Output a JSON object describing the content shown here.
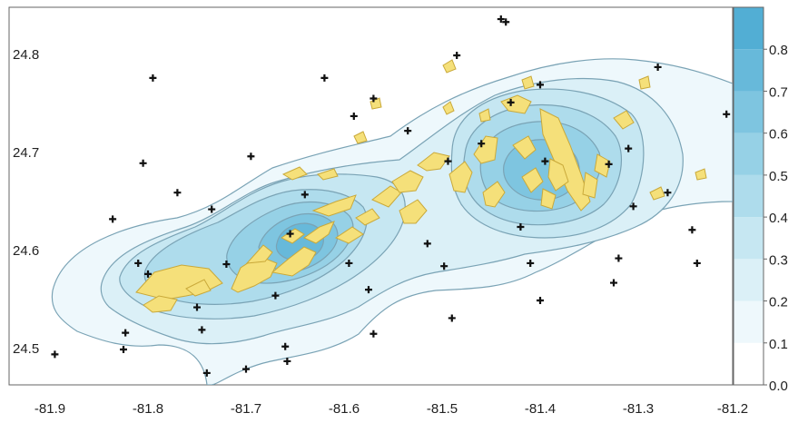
{
  "map": {
    "x_ticks": [
      "-81.9",
      "-81.8",
      "-81.7",
      "-81.6",
      "-81.5",
      "-81.4",
      "-81.3",
      "-81.2"
    ],
    "y_ticks": [
      "24.5",
      "24.6",
      "24.7",
      "24.8"
    ],
    "xlim": [
      -81.9,
      -81.2
    ],
    "ylim": [
      24.45,
      24.85
    ],
    "colors": {
      "land": "#f5e07a",
      "land_edge": "#c9a93a",
      "contour_line": "#7aa3b5",
      "frame": "#666666",
      "point": "#111111"
    }
  },
  "colorbar": {
    "ticks": [
      "0.0",
      "0.1",
      "0.2",
      "0.3",
      "0.4",
      "0.5",
      "0.6",
      "0.7",
      "0.8"
    ],
    "range": [
      0.0,
      0.9
    ],
    "colors": [
      "#ffffff",
      "#eef8fc",
      "#dbf0f7",
      "#c6e7f2",
      "#aedcec",
      "#96d1e6",
      "#7ec5e0",
      "#67b9da",
      "#52aed4"
    ]
  },
  "points": [
    [
      -81.895,
      24.495
    ],
    [
      -81.84,
      24.453
    ],
    [
      -81.82,
      24.458
    ],
    [
      -81.825,
      24.5
    ],
    [
      -81.823,
      24.517
    ],
    [
      -81.836,
      24.633
    ],
    [
      -81.81,
      24.588
    ],
    [
      -81.8,
      24.577
    ],
    [
      -81.805,
      24.69
    ],
    [
      -81.795,
      24.777
    ],
    [
      -81.77,
      24.66
    ],
    [
      -81.75,
      24.543
    ],
    [
      -81.745,
      24.52
    ],
    [
      -81.74,
      24.476
    ],
    [
      -81.735,
      24.643
    ],
    [
      -81.72,
      24.587
    ],
    [
      -81.7,
      24.48
    ],
    [
      -81.695,
      24.697
    ],
    [
      -81.67,
      24.555
    ],
    [
      -81.66,
      24.503
    ],
    [
      -81.658,
      24.488
    ],
    [
      -81.655,
      24.618
    ],
    [
      -81.64,
      24.658
    ],
    [
      -81.62,
      24.777
    ],
    [
      -81.595,
      24.588
    ],
    [
      -81.59,
      24.738
    ],
    [
      -81.575,
      24.561
    ],
    [
      -81.57,
      24.756
    ],
    [
      -81.57,
      24.516
    ],
    [
      -81.535,
      24.723
    ],
    [
      -81.515,
      24.608
    ],
    [
      -81.498,
      24.585
    ],
    [
      -81.494,
      24.692
    ],
    [
      -81.49,
      24.532
    ],
    [
      -81.485,
      24.8
    ],
    [
      -81.46,
      24.71
    ],
    [
      -81.44,
      24.837
    ],
    [
      -81.435,
      24.834
    ],
    [
      -81.43,
      24.752
    ],
    [
      -81.42,
      24.625
    ],
    [
      -81.41,
      24.588
    ],
    [
      -81.4,
      24.77
    ],
    [
      -81.4,
      24.55
    ],
    [
      -81.395,
      24.692
    ],
    [
      -81.33,
      24.689
    ],
    [
      -81.325,
      24.568
    ],
    [
      -81.32,
      24.593
    ],
    [
      -81.31,
      24.705
    ],
    [
      -81.305,
      24.646
    ],
    [
      -81.28,
      24.788
    ],
    [
      -81.27,
      24.66
    ],
    [
      -81.245,
      24.622
    ],
    [
      -81.24,
      24.588
    ],
    [
      -81.21,
      24.74
    ]
  ]
}
